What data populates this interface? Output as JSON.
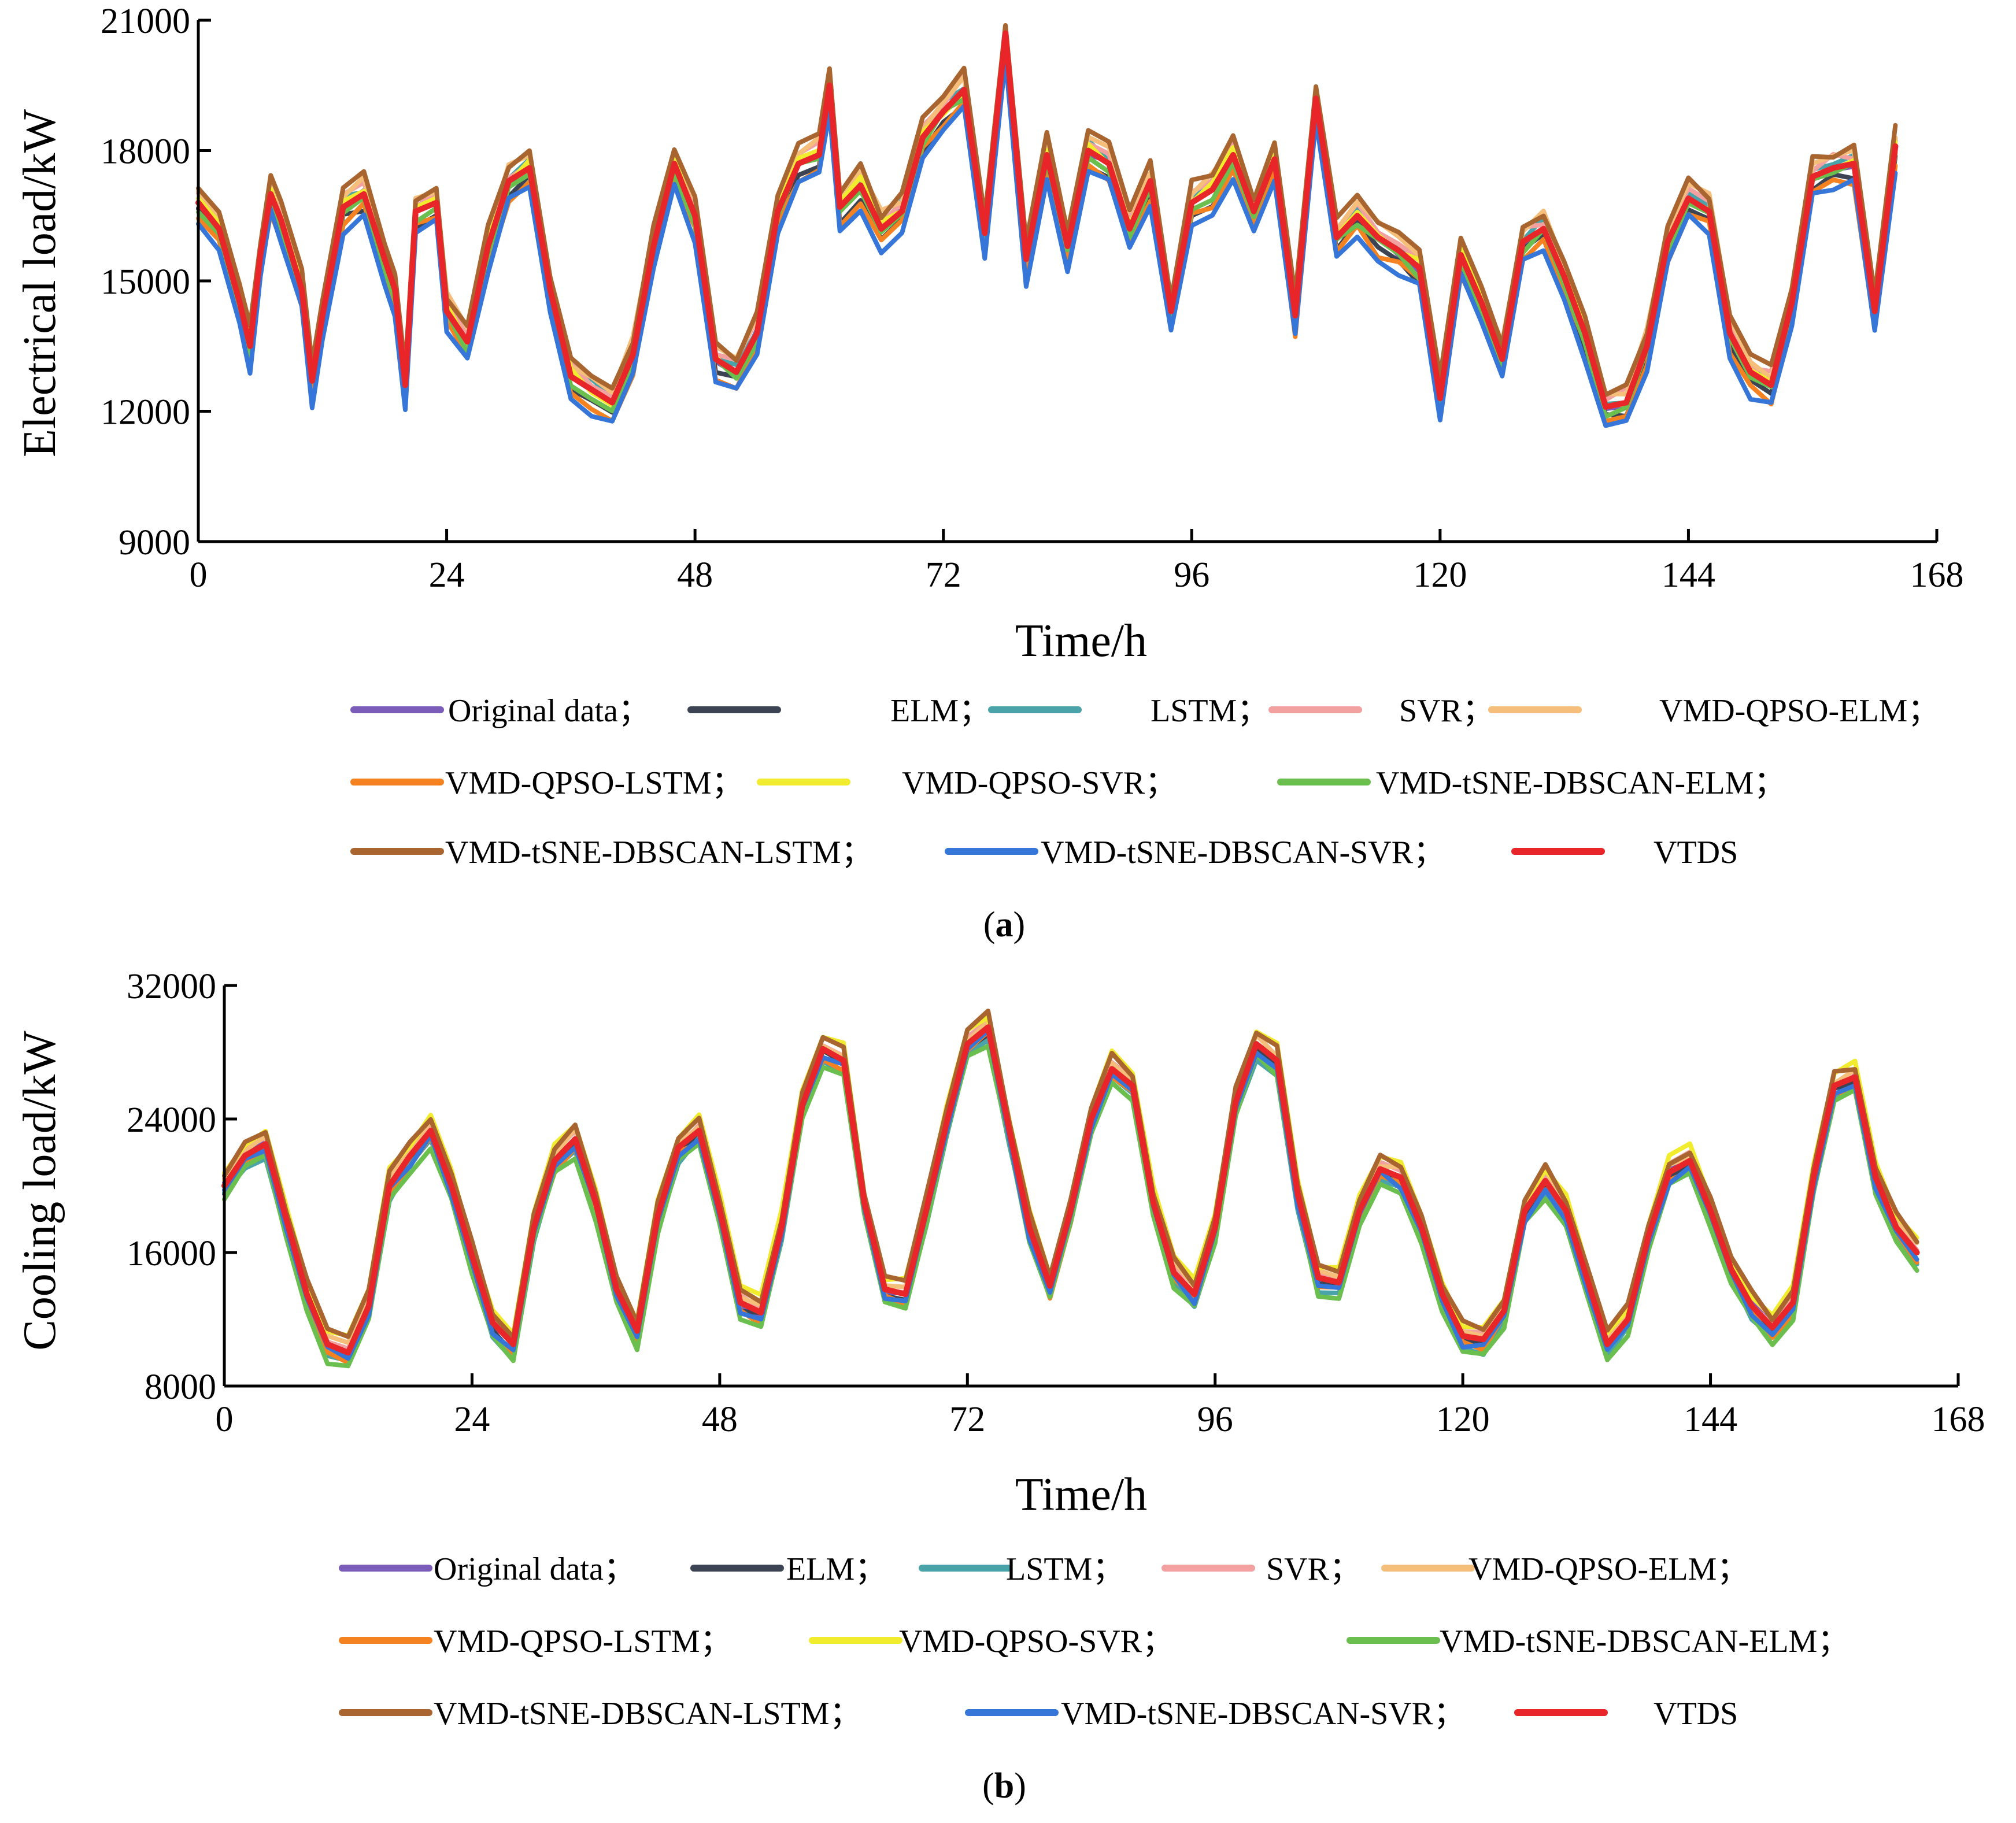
{
  "chart_data": [
    {
      "type": "line",
      "panel_label": "a",
      "xlabel": "Time/h",
      "ylabel": "Electrical load/kW",
      "xlim": [
        0,
        168
      ],
      "ylim": [
        9000,
        21000
      ],
      "xticks": [
        0,
        24,
        48,
        72,
        96,
        120,
        144,
        168
      ],
      "yticks": [
        9000,
        12000,
        15000,
        18000,
        21000
      ],
      "grid": false,
      "legend_position": "bottom",
      "series": [
        {
          "name": "Original data；",
          "color": "#7b5cb8",
          "offset": 0,
          "role": "base"
        },
        {
          "name": "ELM；",
          "color": "#3c4454",
          "offset": -250,
          "role": "base"
        },
        {
          "name": "LSTM；",
          "color": "#4aa3a8",
          "offset": 120,
          "role": "base"
        },
        {
          "name": "SVR；",
          "color": "#f2a0a0",
          "offset": 200,
          "role": "base"
        },
        {
          "name": "VMD-QPSO-ELM；",
          "color": "#f5be7a",
          "offset": 300,
          "role": "base"
        },
        {
          "name": "VMD-QPSO-LSTM；",
          "color": "#f58220",
          "offset": -350,
          "role": "base"
        },
        {
          "name": "VMD-QPSO-SVR；",
          "color": "#f2ec2f",
          "offset": 60,
          "role": "base"
        },
        {
          "name": "VMD-tSNE-DBSCAN-ELM；",
          "color": "#6bbf4e",
          "offset": -120,
          "role": "base"
        },
        {
          "name": "VMD-tSNE-DBSCAN-LSTM；",
          "color": "#a9652f",
          "offset": 380,
          "role": "base"
        },
        {
          "name": "VMD-tSNE-DBSCAN-SVR；",
          "color": "#3576d8",
          "offset": -500,
          "role": "base"
        },
        {
          "name": "VTDS",
          "color": "#e8262a",
          "offset": 0,
          "role": "top"
        }
      ],
      "base_profile": {
        "x": [
          0,
          2,
          4,
          5,
          6,
          7,
          8,
          10,
          11,
          12,
          14,
          16,
          18,
          19,
          20,
          21,
          23,
          24,
          26,
          28,
          30,
          32,
          34,
          36,
          38,
          40,
          42,
          44,
          46,
          48,
          50,
          52,
          54,
          56,
          58,
          60,
          61,
          62,
          64,
          66,
          68,
          70,
          72,
          74,
          76,
          78,
          80,
          82,
          84,
          86,
          88,
          90,
          92,
          94,
          96,
          98,
          100,
          102,
          104,
          106,
          108,
          110,
          112,
          114,
          116,
          118,
          120,
          122,
          124,
          126,
          128,
          130,
          132,
          134,
          136,
          138,
          140,
          142,
          144,
          146,
          148,
          150,
          152,
          154,
          156,
          158,
          160,
          162,
          164
        ],
        "y": [
          16800,
          16200,
          14500,
          13500,
          15600,
          17000,
          16400,
          14800,
          12700,
          14200,
          16700,
          17000,
          15500,
          14800,
          12600,
          16600,
          16800,
          14300,
          13600,
          15800,
          17300,
          17600,
          14800,
          12800,
          12500,
          12200,
          13300,
          15800,
          17700,
          16500,
          13200,
          12900,
          13800,
          16600,
          17700,
          17900,
          19500,
          16700,
          17200,
          16200,
          16600,
          18300,
          18900,
          19400,
          16100,
          20700,
          15500,
          17900,
          15800,
          18000,
          17700,
          16200,
          17300,
          14300,
          16800,
          17100,
          17900,
          16600,
          17800,
          14200,
          19200,
          16000,
          16500,
          16000,
          15700,
          15300,
          12300,
          15600,
          14500,
          13200,
          15900,
          16200,
          15100,
          13800,
          12100,
          12200,
          13500,
          15900,
          16900,
          16600,
          13800,
          12900,
          12600,
          14500,
          17400,
          17600,
          17700,
          14300,
          18100
        ]
      }
    },
    {
      "type": "line",
      "panel_label": "b",
      "xlabel": "Time/h",
      "ylabel": "Cooling load/kW",
      "xlim": [
        0,
        168
      ],
      "ylim": [
        8000,
        32000
      ],
      "xticks": [
        0,
        24,
        48,
        72,
        96,
        120,
        144,
        168
      ],
      "yticks": [
        8000,
        16000,
        24000,
        32000
      ],
      "grid": false,
      "legend_position": "bottom",
      "series": [
        {
          "name": "Original data；",
          "color": "#7b5cb8",
          "offset": 0,
          "role": "base"
        },
        {
          "name": "ELM；",
          "color": "#3c4454",
          "offset": -300,
          "role": "base"
        },
        {
          "name": "LSTM；",
          "color": "#4aa3a8",
          "offset": -700,
          "role": "base"
        },
        {
          "name": "SVR；",
          "color": "#f2a0a0",
          "offset": 250,
          "role": "base"
        },
        {
          "name": "VMD-QPSO-ELM；",
          "color": "#f5be7a",
          "offset": 400,
          "role": "base"
        },
        {
          "name": "VMD-QPSO-LSTM；",
          "color": "#f58220",
          "offset": -500,
          "role": "base"
        },
        {
          "name": "VMD-QPSO-SVR；",
          "color": "#f2ec2f",
          "offset": 800,
          "role": "base"
        },
        {
          "name": "VMD-tSNE-DBSCAN-ELM；",
          "color": "#6bbf4e",
          "offset": -900,
          "role": "base"
        },
        {
          "name": "VMD-tSNE-DBSCAN-LSTM；",
          "color": "#a9652f",
          "offset": 700,
          "role": "base"
        },
        {
          "name": "VMD-tSNE-DBSCAN-SVR；",
          "color": "#3576d8",
          "offset": -400,
          "role": "base"
        },
        {
          "name": "VTDS",
          "color": "#e8262a",
          "offset": 0,
          "role": "top"
        }
      ],
      "base_profile": {
        "x": [
          0,
          2,
          4,
          6,
          8,
          10,
          12,
          14,
          16,
          18,
          20,
          22,
          24,
          26,
          28,
          30,
          32,
          34,
          36,
          38,
          40,
          42,
          44,
          46,
          48,
          50,
          52,
          54,
          56,
          58,
          60,
          62,
          64,
          66,
          68,
          70,
          72,
          74,
          76,
          78,
          80,
          82,
          84,
          86,
          88,
          90,
          92,
          94,
          96,
          98,
          100,
          102,
          104,
          106,
          108,
          110,
          112,
          114,
          116,
          118,
          120,
          122,
          124,
          126,
          128,
          130,
          132,
          134,
          136,
          138,
          140,
          142,
          144,
          146,
          148,
          150,
          152,
          154,
          156,
          158,
          160,
          162,
          164
        ],
        "y": [
          20000,
          21800,
          22500,
          18000,
          13500,
          10500,
          10000,
          12800,
          20000,
          21800,
          23300,
          20000,
          15800,
          11800,
          10500,
          17500,
          21500,
          22800,
          19000,
          13800,
          11300,
          18200,
          22300,
          23300,
          18500,
          13000,
          12400,
          17500,
          24800,
          28200,
          27500,
          19000,
          13800,
          13500,
          18500,
          23800,
          28500,
          29500,
          23500,
          17500,
          14000,
          18500,
          24000,
          27000,
          26000,
          19000,
          14800,
          13500,
          17500,
          25000,
          28500,
          27500,
          19500,
          14500,
          14200,
          18500,
          21000,
          20500,
          17500,
          13500,
          11000,
          10800,
          12500,
          18500,
          20300,
          18500,
          14500,
          10500,
          12000,
          17000,
          20800,
          21500,
          18500,
          15000,
          12800,
          11500,
          13000,
          20500,
          26000,
          26500,
          20500,
          17500,
          16000
        ]
      }
    }
  ]
}
